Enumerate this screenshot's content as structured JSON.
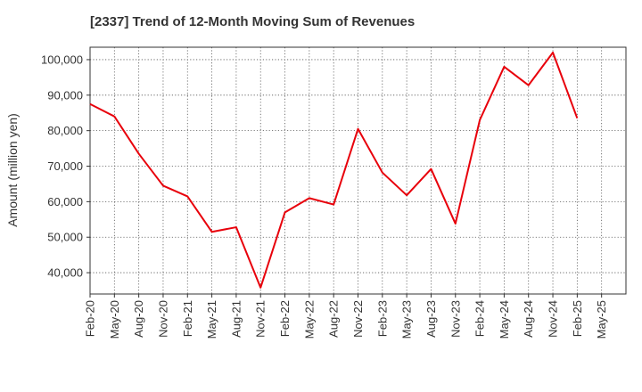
{
  "chart_data": {
    "type": "line",
    "title": "[2337]  Trend of 12-Month Moving Sum of Revenues",
    "xlabel": "",
    "ylabel": "Amount (million yen)",
    "x_tick_labels": [
      "Feb-20",
      "May-20",
      "Aug-20",
      "Nov-20",
      "Feb-21",
      "May-21",
      "Aug-21",
      "Nov-21",
      "Feb-22",
      "May-22",
      "Aug-22",
      "Nov-22",
      "Feb-23",
      "May-23",
      "Aug-23",
      "Nov-23",
      "Feb-24",
      "May-24",
      "Aug-24",
      "Nov-24",
      "Feb-25",
      "May-25"
    ],
    "y_ticks": [
      40000,
      50000,
      60000,
      70000,
      80000,
      90000,
      100000
    ],
    "y_tick_labels": [
      "40,000",
      "50,000",
      "60,000",
      "70,000",
      "80,000",
      "90,000",
      "100,000"
    ],
    "ylim": [
      34000,
      103500
    ],
    "grid": true,
    "line_color": "#e8000b",
    "series": [
      {
        "x": [
          "Feb-20",
          "May-20",
          "Aug-20",
          "Nov-20",
          "Feb-21",
          "May-21",
          "Aug-21",
          "Nov-21",
          "Feb-22",
          "May-22",
          "Aug-22",
          "Nov-22",
          "Feb-23",
          "May-23",
          "Aug-23",
          "Nov-23",
          "Feb-24",
          "May-24",
          "Aug-24",
          "Nov-24",
          "Feb-25"
        ],
        "values": [
          87500,
          84000,
          73500,
          64500,
          61500,
          51500,
          52800,
          35800,
          57000,
          61000,
          59200,
          80500,
          68200,
          61800,
          69200,
          53800,
          83000,
          98000,
          92800,
          102000,
          83500
        ]
      }
    ]
  }
}
